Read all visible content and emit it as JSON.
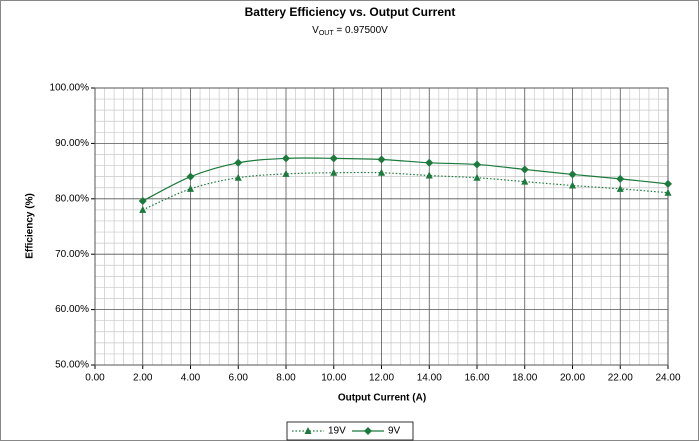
{
  "chart_data": {
    "type": "line",
    "title": "Battery Efficiency vs. Output Current",
    "subtitle": [
      "V",
      "OUT",
      " = 0.97500V"
    ],
    "x_label": "Output Current (A)",
    "y_label": "Efficiency (%)",
    "x": [
      2,
      4,
      6,
      8,
      10,
      12,
      14,
      16,
      18,
      20,
      22,
      24
    ],
    "series": [
      {
        "name": "19V",
        "color": "#1b7a3c",
        "marker": "triangle",
        "dash": "dotted",
        "values": [
          78.0,
          81.8,
          83.8,
          84.5,
          84.7,
          84.7,
          84.2,
          83.8,
          83.1,
          82.4,
          81.8,
          81.1
        ]
      },
      {
        "name": "9V",
        "color": "#1b7a3c",
        "marker": "diamond",
        "dash": "solid",
        "values": [
          79.6,
          84.0,
          86.5,
          87.3,
          87.3,
          87.1,
          86.5,
          86.2,
          85.3,
          84.4,
          83.6,
          82.7
        ]
      }
    ],
    "xlim": [
      0,
      24
    ],
    "xticks": [
      {
        "value": 0,
        "label": "0.00"
      },
      {
        "value": 2,
        "label": "2.00"
      },
      {
        "value": 4,
        "label": "4.00"
      },
      {
        "value": 6,
        "label": "6.00"
      },
      {
        "value": 8,
        "label": "8.00"
      },
      {
        "value": 10,
        "label": "10.00"
      },
      {
        "value": 12,
        "label": "12.00"
      },
      {
        "value": 14,
        "label": "14.00"
      },
      {
        "value": 16,
        "label": "16.00"
      },
      {
        "value": 18,
        "label": "18.00"
      },
      {
        "value": 20,
        "label": "20.00"
      },
      {
        "value": 22,
        "label": "22.00"
      },
      {
        "value": 24,
        "label": "24.00"
      }
    ],
    "ylim": [
      50,
      100
    ],
    "yticks": [
      {
        "value": 50,
        "label": "50.00%"
      },
      {
        "value": 60,
        "label": "60.00%"
      },
      {
        "value": 70,
        "label": "70.00%"
      },
      {
        "value": 80,
        "label": "80.00%"
      },
      {
        "value": 90,
        "label": "90.00%"
      },
      {
        "value": 100,
        "label": "100.00%"
      }
    ],
    "grid": true,
    "legend": "bottom"
  }
}
